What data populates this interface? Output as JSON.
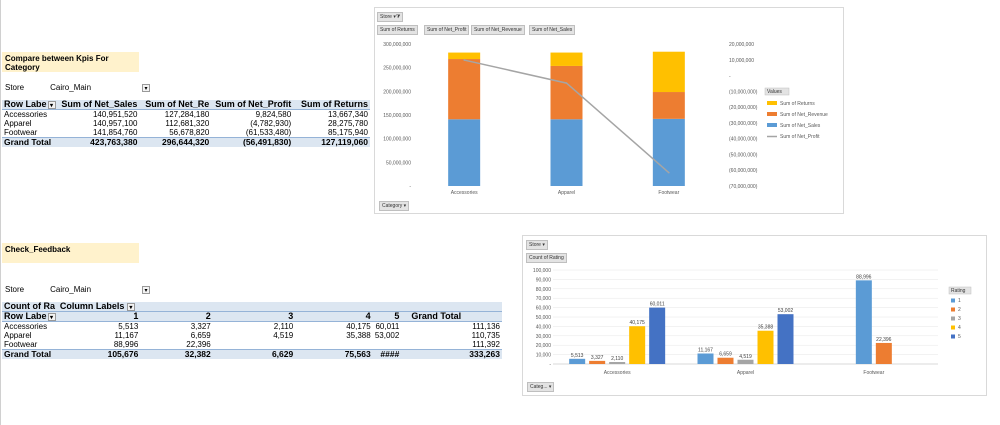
{
  "section1": {
    "banner": "Compare between Kpis For Category",
    "filter_label": "Store",
    "filter_value": "Cairo_Main",
    "headers": [
      "Row Labe",
      "Sum of Net_Sales",
      "Sum of Net_Re",
      "Sum of Net_Profit",
      "Sum of Returns"
    ],
    "rows": [
      [
        "Accessories",
        "140,951,520",
        "127,284,180",
        "9,824,580",
        "13,667,340"
      ],
      [
        "Apparel",
        "140,957,100",
        "112,681,320",
        "(4,782,930)",
        "28,275,780"
      ],
      [
        "Footwear",
        "141,854,760",
        "56,678,820",
        "(61,533,480)",
        "85,175,940"
      ]
    ],
    "total": [
      "Grand Total",
      "423,763,380",
      "296,644,320",
      "(56,491,830)",
      "127,119,060"
    ]
  },
  "section2": {
    "banner": "Check_Feedback",
    "filter_label": "Store",
    "filter_value": "Cairo_Main",
    "header1": [
      "Count of Ra",
      "Column Labels"
    ],
    "header2": [
      "Row Labe",
      "1",
      "2",
      "3",
      "4",
      "5",
      "Grand Total"
    ],
    "rows": [
      [
        "Accessories",
        "5,513",
        "3,327",
        "2,110",
        "40,175",
        "60,011",
        "111,136"
      ],
      [
        "Apparel",
        "11,167",
        "6,659",
        "4,519",
        "35,388",
        "53,002",
        "110,735"
      ],
      [
        "Footwear",
        "88,996",
        "22,396",
        "",
        "",
        "",
        "111,392"
      ]
    ],
    "total": [
      "Grand Total",
      "105,676",
      "32,382",
      "6,629",
      "75,563",
      "####",
      "333,263"
    ]
  },
  "chart1_ui": {
    "store_button": "Store",
    "value_buttons": [
      "Sum of Returns",
      "Sum of Net_Profit",
      "Sum of Net_Revenue",
      "Sum of Net_Sales"
    ],
    "category_button": "Category",
    "legend_title": "Values"
  },
  "chart2_ui": {
    "store_button": "Store",
    "value_button": "Count of Rating",
    "category_button": "Categ...",
    "legend_title": "Rating"
  },
  "chart_data": [
    {
      "type": "bar",
      "stacked": true,
      "categories": [
        "Accessories",
        "Apparel",
        "Footwear"
      ],
      "series": [
        {
          "name": "Sum of Net_Sales",
          "values": [
            140951520,
            140957100,
            141854760
          ],
          "color": "#5b9bd5"
        },
        {
          "name": "Sum of Net_Revenue",
          "values": [
            127284180,
            112681320,
            56678820
          ],
          "color": "#ed7d31"
        },
        {
          "name": "Sum of Returns",
          "values": [
            13667340,
            28275780,
            85175940
          ],
          "color": "#ffc000"
        }
      ],
      "line_series": {
        "name": "Sum of Net_Profit",
        "axis": "secondary",
        "values": [
          9824580,
          -4782930,
          -61533480
        ],
        "color": "#a5a5a5"
      },
      "ylim": [
        0,
        300000000
      ],
      "y_ticks": [
        "300,000,000",
        "250,000,000",
        "200,000,000",
        "150,000,000",
        "100,000,000",
        "50,000,000",
        "-"
      ],
      "y2lim": [
        -70000000,
        20000000
      ],
      "y2_ticks": [
        "20,000,000",
        "10,000,000",
        "-",
        "(10,000,000)",
        "(20,000,000)",
        "(30,000,000)",
        "(40,000,000)",
        "(50,000,000)",
        "(60,000,000)",
        "(70,000,000)"
      ],
      "legend": [
        "Sum of Returns",
        "Sum of Net_Revenue",
        "Sum of Net_Sales",
        "Sum of Net_Profit"
      ],
      "legend_position": "right",
      "grid": false
    },
    {
      "type": "bar",
      "stacked": false,
      "categories": [
        "Accessories",
        "Apparel",
        "Footwear"
      ],
      "series": [
        {
          "name": "1",
          "values": [
            5513,
            11167,
            88996
          ],
          "labels": [
            "5,513",
            "11,167",
            "88,996"
          ],
          "color": "#5b9bd5"
        },
        {
          "name": "2",
          "values": [
            3327,
            6659,
            22396
          ],
          "labels": [
            "3,327",
            "6,659",
            "22,396"
          ],
          "color": "#ed7d31"
        },
        {
          "name": "3",
          "values": [
            2110,
            4519,
            null
          ],
          "labels": [
            "2,110",
            "4,519",
            ""
          ],
          "color": "#a5a5a5"
        },
        {
          "name": "4",
          "values": [
            40175,
            35388,
            null
          ],
          "labels": [
            "40,175",
            "35,388",
            ""
          ],
          "color": "#ffc000"
        },
        {
          "name": "5",
          "values": [
            60011,
            53002,
            null
          ],
          "labels": [
            "60,011",
            "53,002",
            ""
          ],
          "color": "#4472c4"
        }
      ],
      "ylim": [
        0,
        100000
      ],
      "y_ticks": [
        "100,000",
        "90,000",
        "80,000",
        "70,000",
        "60,000",
        "50,000",
        "40,000",
        "30,000",
        "20,000",
        "10,000",
        "-"
      ],
      "legend": [
        "1",
        "2",
        "3",
        "4",
        "5"
      ],
      "legend_position": "right",
      "grid": true
    }
  ]
}
